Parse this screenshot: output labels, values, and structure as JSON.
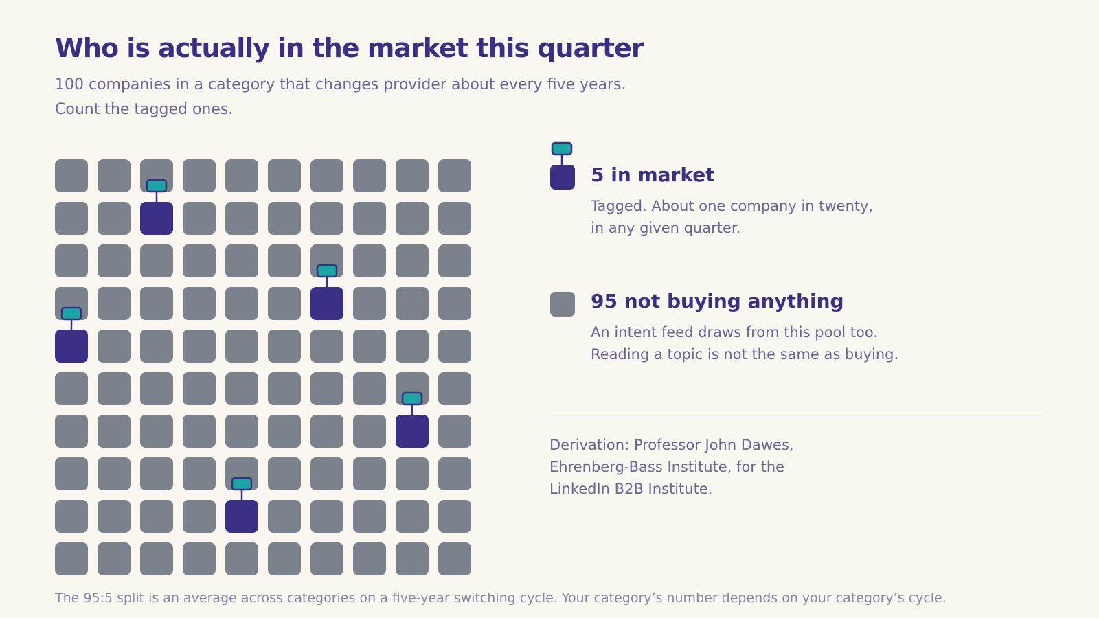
{
  "header": {
    "title": "Who is actually in the market this quarter",
    "subtitle_lines": [
      "100 companies in a category that changes provider about every five years.",
      "Count the tagged ones."
    ]
  },
  "chart_data": {
    "type": "unit-grid",
    "rows": 10,
    "columns": 10,
    "total": 100,
    "in_market_cells": [
      [
        1,
        2
      ],
      [
        3,
        6
      ],
      [
        4,
        0
      ],
      [
        6,
        8
      ],
      [
        8,
        4
      ]
    ],
    "colors": {
      "in_market": "#3a2e85",
      "not_buying": "#7c828c",
      "tag_fill": "#1aa7a3",
      "tag_outline": "#3a2e85"
    }
  },
  "legend": {
    "in_market": {
      "heading": "5 in market",
      "body_lines": [
        "Tagged. About one company in twenty,",
        "in any given quarter."
      ]
    },
    "not_buying": {
      "heading": "95 not buying anything",
      "body_lines": [
        "An intent feed draws from this pool too.",
        "Reading a topic is not the same as buying."
      ]
    }
  },
  "derivation_lines": [
    "Derivation: Professor John Dawes,",
    "Ehrenberg-Bass Institute, for the",
    "LinkedIn B2B Institute."
  ],
  "footnote": "The 95:5 split is an average across categories on a five-year switching cycle. Your category’s number depends on your category’s cycle."
}
